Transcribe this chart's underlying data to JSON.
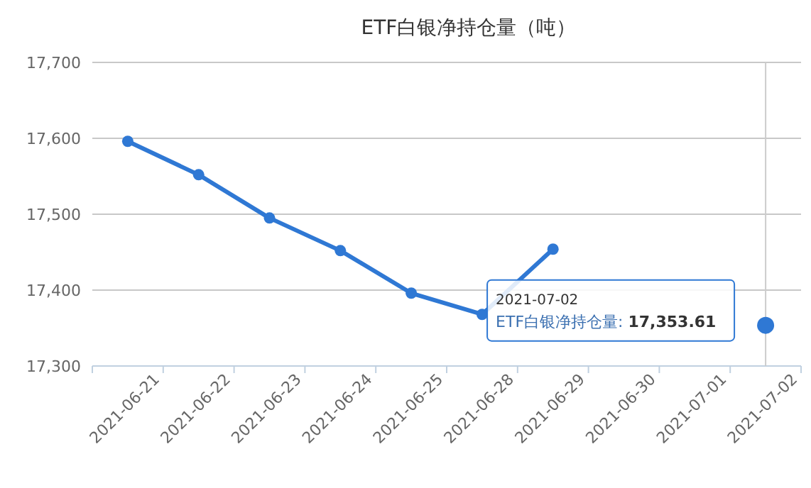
{
  "chart_data": {
    "type": "line",
    "title": "ETF白银净持仓量（吨）",
    "categories": [
      "2021-06-21",
      "2021-06-22",
      "2021-06-23",
      "2021-06-24",
      "2021-06-25",
      "2021-06-28",
      "2021-06-29",
      "2021-06-30",
      "2021-07-01",
      "2021-07-02"
    ],
    "series": [
      {
        "color": "#2f78d4",
        "values": [
          17596,
          17552,
          17495,
          17452,
          17396,
          17368,
          17454,
          null,
          null,
          17353.61
        ]
      }
    ],
    "ylim": [
      17300,
      17700
    ],
    "yticks": [
      {
        "value": 17300,
        "label": "17,300"
      },
      {
        "value": 17400,
        "label": "17,400"
      },
      {
        "value": 17500,
        "label": "17,500"
      },
      {
        "value": 17600,
        "label": "17,600"
      },
      {
        "value": 17700,
        "label": "17,700"
      }
    ],
    "grid": "y",
    "marker": "circle",
    "line_style": "solid",
    "ref_lines": [
      {
        "axis": "x",
        "value": "2021-07-02",
        "color": "#cccccc"
      }
    ],
    "annotations": [
      "2021-07-02",
      "ETF白银净持仓量: **17,353.61**"
    ]
  }
}
